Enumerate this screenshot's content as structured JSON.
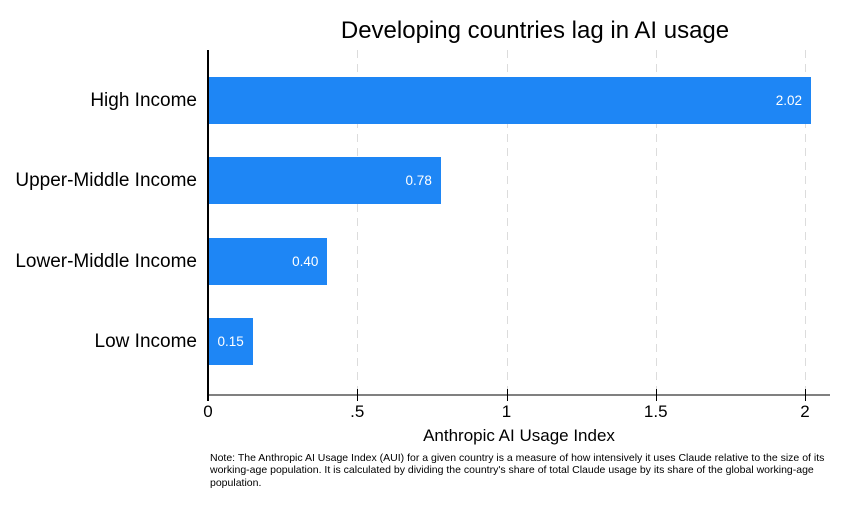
{
  "chart_data": {
    "type": "bar",
    "orientation": "horizontal",
    "title": "Developing countries lag in AI usage",
    "xlabel": "Anthropic AI Usage Index",
    "ylabel": "",
    "categories": [
      "High Income",
      "Upper-Middle Income",
      "Lower-Middle Income",
      "Low Income"
    ],
    "values": [
      2.02,
      0.78,
      0.4,
      0.15
    ],
    "value_labels": [
      "2.02",
      "0.78",
      "0.40",
      "0.15"
    ],
    "xlim": [
      0,
      2.08
    ],
    "x_ticks": [
      {
        "value": 0,
        "label": "0"
      },
      {
        "value": 0.5,
        "label": ".5"
      },
      {
        "value": 1,
        "label": "1"
      },
      {
        "value": 1.5,
        "label": "1.5"
      },
      {
        "value": 2,
        "label": "2"
      }
    ],
    "grid": "vertical-dashed",
    "legend": "none",
    "bar_color": "#1e86f5",
    "value_label_color": "#ffffff",
    "gridline_color": "#dcdcdc",
    "x_axis_color": "#808080",
    "y_axis_color": "#000000"
  },
  "note": "Note: The Anthropic AI Usage Index (AUI) for a given country is a measure of how intensively it uses Claude relative to the size of its working-age population. It is calculated by dividing the country's share of total Claude usage by its share of the global working-age population."
}
